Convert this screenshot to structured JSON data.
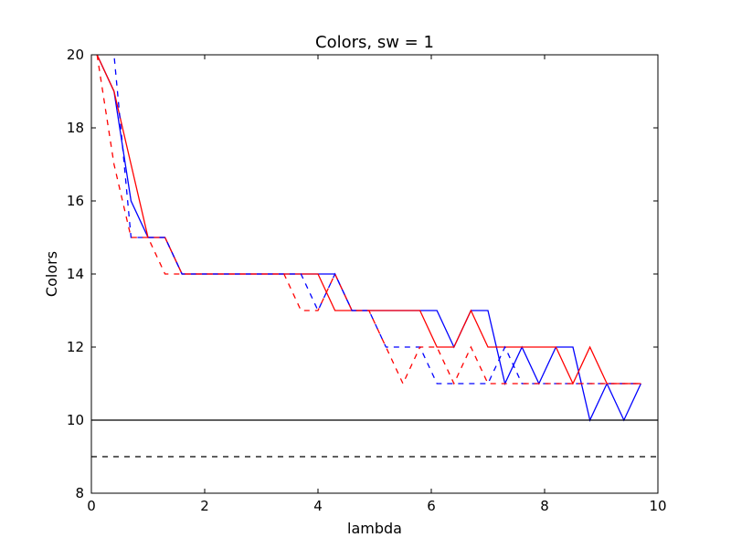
{
  "chart_data": {
    "type": "line",
    "title": "Colors, sw = 1",
    "xlabel": "lambda",
    "ylabel": "Colors",
    "xlim": [
      0,
      10
    ],
    "ylim": [
      8,
      20
    ],
    "xticks": [
      0,
      2,
      4,
      6,
      8,
      10
    ],
    "yticks": [
      8,
      10,
      12,
      14,
      16,
      18,
      20
    ],
    "grid": false,
    "legend": "none",
    "series": [
      {
        "color": "#0000ff",
        "style": "solid",
        "x": [
          0.1,
          0.4,
          0.7,
          1.0,
          1.3,
          1.6,
          1.9,
          2.2,
          2.5,
          2.8,
          3.1,
          3.4,
          3.7,
          4.0,
          4.3,
          4.6,
          4.9,
          5.2,
          5.5,
          5.8,
          6.1,
          6.4,
          6.7,
          7.0,
          7.3,
          7.6,
          7.9,
          8.2,
          8.5,
          8.8,
          9.1,
          9.4,
          9.7
        ],
        "y": [
          20,
          19,
          16,
          15,
          15,
          14,
          14,
          14,
          14,
          14,
          14,
          14,
          14,
          14,
          14,
          13,
          13,
          13,
          13,
          13,
          13,
          12,
          13,
          13,
          11,
          12,
          11,
          12,
          12,
          10,
          11,
          10,
          11
        ]
      },
      {
        "color": "#ff0000",
        "style": "solid",
        "x": [
          0.1,
          0.4,
          0.7,
          1.0,
          1.3,
          1.6,
          1.9,
          2.2,
          2.5,
          2.8,
          3.1,
          3.4,
          3.7,
          4.0,
          4.3,
          4.6,
          4.9,
          5.2,
          5.5,
          5.8,
          6.1,
          6.4,
          6.7,
          7.0,
          7.3,
          7.6,
          7.9,
          8.2,
          8.5,
          8.8,
          9.1,
          9.4,
          9.7
        ],
        "y": [
          20,
          19,
          17,
          15,
          15,
          14,
          14,
          14,
          14,
          14,
          14,
          14,
          14,
          14,
          13,
          13,
          13,
          13,
          13,
          13,
          12,
          12,
          13,
          12,
          12,
          12,
          12,
          12,
          11,
          12,
          11,
          11,
          11
        ]
      },
      {
        "color": "#0000ff",
        "style": "dashed",
        "x": [
          0.1,
          0.4,
          0.7,
          1.0,
          1.3,
          1.6,
          1.9,
          2.2,
          2.5,
          2.8,
          3.1,
          3.4,
          3.7,
          4.0,
          4.3,
          4.6,
          4.9,
          5.2,
          5.5,
          5.8,
          6.1,
          6.4,
          6.7,
          7.0,
          7.3,
          7.6,
          7.9,
          8.2,
          8.5,
          8.8,
          9.1,
          9.4,
          9.7
        ],
        "y": [
          21,
          20,
          15,
          15,
          15,
          14,
          14,
          14,
          14,
          14,
          14,
          14,
          14,
          13,
          14,
          13,
          13,
          12,
          12,
          12,
          11,
          11,
          11,
          11,
          12,
          11,
          11,
          11,
          11,
          11,
          11,
          11,
          11
        ]
      },
      {
        "color": "#ff0000",
        "style": "dashed",
        "x": [
          0.1,
          0.4,
          0.7,
          1.0,
          1.3,
          1.6,
          1.9,
          2.2,
          2.5,
          2.8,
          3.1,
          3.4,
          3.7,
          4.0,
          4.3,
          4.6,
          4.9,
          5.2,
          5.5,
          5.8,
          6.1,
          6.4,
          6.7,
          7.0,
          7.3,
          7.6,
          7.9,
          8.2,
          8.5,
          8.8,
          9.1,
          9.4,
          9.7
        ],
        "y": [
          20,
          17,
          15,
          15,
          14,
          14,
          14,
          14,
          14,
          14,
          14,
          14,
          13,
          13,
          14,
          13,
          13,
          12,
          11,
          12,
          12,
          11,
          12,
          11,
          11,
          11,
          11,
          11,
          11,
          11,
          11,
          11,
          11
        ]
      },
      {
        "color": "#000000",
        "style": "solid",
        "x": [
          0,
          10
        ],
        "y": [
          10,
          10
        ]
      },
      {
        "color": "#000000",
        "style": "dashed",
        "x": [
          0,
          10
        ],
        "y": [
          9,
          9
        ]
      }
    ]
  }
}
